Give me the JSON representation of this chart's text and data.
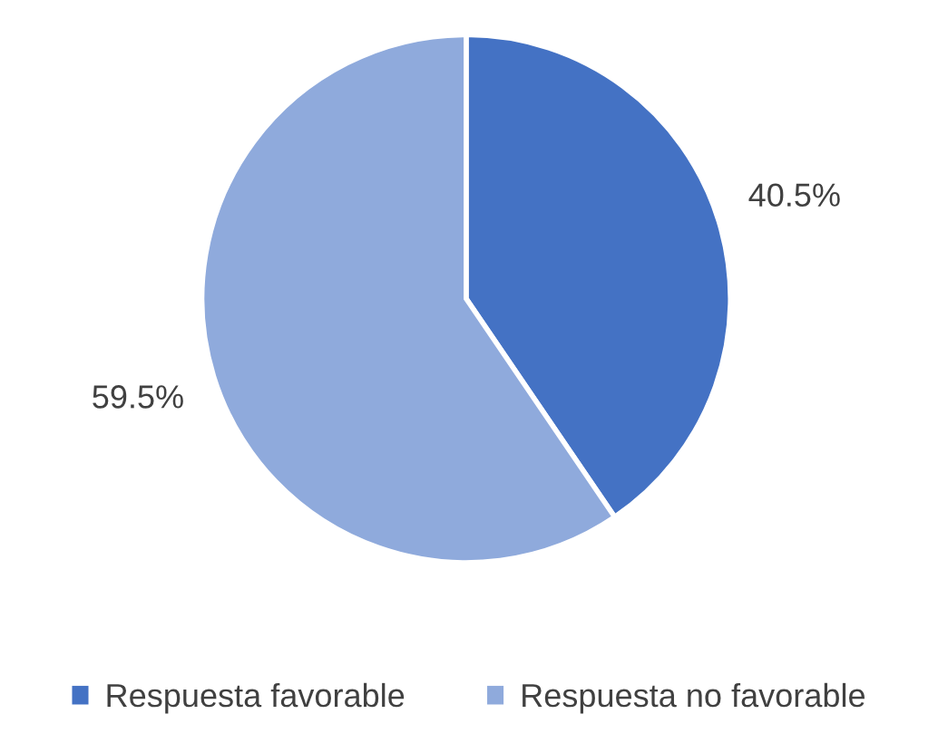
{
  "chart_data": {
    "type": "pie",
    "categories": [
      "Respuesta favorable",
      "Respuesta no favorable"
    ],
    "values": [
      40.5,
      59.5
    ],
    "colors": [
      "#4472c4",
      "#8faadc"
    ],
    "value_labels": [
      "40.5%",
      "59.5%"
    ],
    "legend": "bottom"
  }
}
